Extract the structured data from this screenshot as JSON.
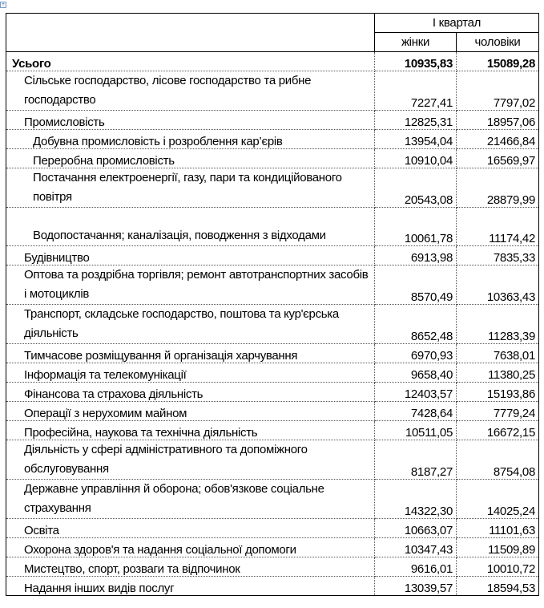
{
  "header": {
    "period": "I квартал",
    "col_women": "жінки",
    "col_men": "чоловіки"
  },
  "rows": [
    {
      "label": "Усього",
      "level": 0,
      "women": "10935,83",
      "men": "15089,28"
    },
    {
      "label": "Сільське господарство, лісове господарство та рибне господарство",
      "level": 1,
      "women": "7227,41",
      "men": "7797,02"
    },
    {
      "label": "Промисловість",
      "level": 1,
      "women": "12825,31",
      "men": "18957,06"
    },
    {
      "label": "Добувна промисловість і розроблення кар’єрів",
      "level": 2,
      "women": "13954,04",
      "men": "21466,84"
    },
    {
      "label": "Переробна промисловість",
      "level": 2,
      "women": "10910,04",
      "men": "16569,97"
    },
    {
      "label": "Постачання електроенергії, газу, пари та кондиційованого повітря",
      "level": 2,
      "women": "20543,08",
      "men": "28879,99"
    },
    {
      "label": "Водопостачання; каналізація, поводження з відходами",
      "level": 2,
      "women": "10061,78",
      "men": "11174,42"
    },
    {
      "label": "Будівництво",
      "level": 1,
      "women": "6913,98",
      "men": "7835,33"
    },
    {
      "label": "Оптова та роздрібна торгівля; ремонт автотранспортних засобів і мотоциклів",
      "level": 1,
      "women": "8570,49",
      "men": "10363,43"
    },
    {
      "label": "Транспорт, складське господарство, поштова та кур'єрська діяльність",
      "level": 1,
      "women": "8652,48",
      "men": "11283,39"
    },
    {
      "label": "Тимчасове розміщування й організація харчування",
      "level": 1,
      "women": "6970,93",
      "men": "7638,01"
    },
    {
      "label": "Інформація та телекомунікації",
      "level": 1,
      "women": "9658,40",
      "men": "11380,25"
    },
    {
      "label": "Фінансова та страхова діяльність",
      "level": 1,
      "women": "12403,57",
      "men": "15193,86"
    },
    {
      "label": "Операції з нерухомим майном",
      "level": 1,
      "women": "7428,64",
      "men": "7779,24"
    },
    {
      "label": "Професійна, наукова та технічна діяльність",
      "level": 1,
      "women": "10511,05",
      "men": "16672,15"
    },
    {
      "label": "Діяльність у сфері адміністративного та допоміжного обслуговування",
      "level": 1,
      "women": "8187,27",
      "men": "8754,08"
    },
    {
      "label": "Державне управління й оборона; обов'язкове соціальне страхування",
      "level": 1,
      "women": "14322,30",
      "men": "14025,24"
    },
    {
      "label": "Освіта",
      "level": 1,
      "women": "10663,07",
      "men": "11101,63"
    },
    {
      "label": "Охорона здоров'я та надання соціальної допомоги",
      "level": 1,
      "women": "10347,43",
      "men": "11509,89"
    },
    {
      "label": "Мистецтво, спорт, розваги та відпочинок",
      "level": 1,
      "women": "9616,01",
      "men": "10010,72"
    },
    {
      "label": "Надання інших видів послуг",
      "level": 1,
      "women": "13039,57",
      "men": "18594,53"
    }
  ]
}
